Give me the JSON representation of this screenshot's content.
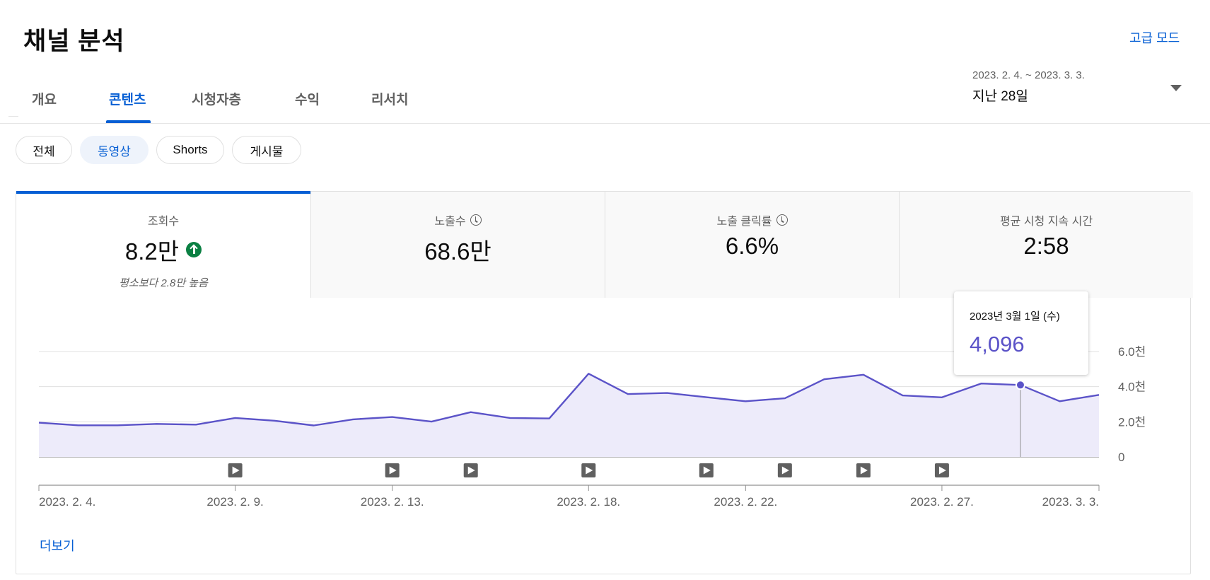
{
  "page_title": "채널 분석",
  "advanced_mode": "고급 모드",
  "tabs": [
    {
      "label": "개요"
    },
    {
      "label": "콘텐츠"
    },
    {
      "label": "시청자층"
    },
    {
      "label": "수익"
    },
    {
      "label": "리서치"
    }
  ],
  "active_tab": "콘텐츠",
  "date_range": {
    "dates": "2023. 2. 4. ~ 2023. 3. 3.",
    "label": "지난 28일"
  },
  "chips": [
    {
      "label": "전체"
    },
    {
      "label": "동영상"
    },
    {
      "label": "Shorts"
    },
    {
      "label": "게시물"
    }
  ],
  "selected_chip": "동영상",
  "metrics": [
    {
      "label": "조회수",
      "value": "8.2만",
      "sub": "평소보다 2.8만 높음",
      "trend": "up"
    },
    {
      "label": "노출수",
      "value": "68.6만",
      "icon": "clock-icon"
    },
    {
      "label": "노출 클릭률",
      "value": "6.6%",
      "icon": "clock-icon"
    },
    {
      "label": "평균 시청 지속 시간",
      "value": "2:58"
    }
  ],
  "tooltip": {
    "date": "2023년 3월 1일 (수)",
    "value": "4,096"
  },
  "more_link": "더보기",
  "colors": {
    "accent": "#065fd4",
    "line": "#5b53c8",
    "area": "#edebfa",
    "up": "#0b8043"
  },
  "chart_data": {
    "type": "area",
    "x": [
      "2023-02-04",
      "2023-02-05",
      "2023-02-06",
      "2023-02-07",
      "2023-02-08",
      "2023-02-09",
      "2023-02-10",
      "2023-02-11",
      "2023-02-12",
      "2023-02-13",
      "2023-02-14",
      "2023-02-15",
      "2023-02-16",
      "2023-02-17",
      "2023-02-18",
      "2023-02-19",
      "2023-02-20",
      "2023-02-21",
      "2023-02-22",
      "2023-02-23",
      "2023-02-24",
      "2023-02-25",
      "2023-02-26",
      "2023-02-27",
      "2023-02-28",
      "2023-03-01",
      "2023-03-02",
      "2023-03-03"
    ],
    "values": [
      1950,
      1800,
      1800,
      1880,
      1840,
      2220,
      2060,
      1790,
      2140,
      2270,
      2010,
      2550,
      2220,
      2190,
      4740,
      3580,
      3640,
      3400,
      3170,
      3340,
      4420,
      4680,
      3500,
      3390,
      4180,
      4096,
      3170,
      3530
    ],
    "x_tick_labels": [
      "2023. 2. 4.",
      "2023. 2. 9.",
      "2023. 2. 13.",
      "2023. 2. 18.",
      "2023. 2. 22.",
      "2023. 2. 27.",
      "2023. 3. 3."
    ],
    "x_tick_dates": [
      "2023-02-04",
      "2023-02-09",
      "2023-02-13",
      "2023-02-18",
      "2023-02-22",
      "2023-02-27",
      "2023-03-03"
    ],
    "y_tick_labels": [
      "0",
      "2.0천",
      "4.0천",
      "6.0천"
    ],
    "y_tick_values": [
      0,
      2000,
      4000,
      6000
    ],
    "ylim": [
      0,
      6000
    ],
    "grid": true,
    "highlight_date": "2023-03-01",
    "video_markers": [
      "2023-02-09",
      "2023-02-13",
      "2023-02-15",
      "2023-02-18",
      "2023-02-21",
      "2023-02-23",
      "2023-02-25",
      "2023-02-27"
    ]
  }
}
